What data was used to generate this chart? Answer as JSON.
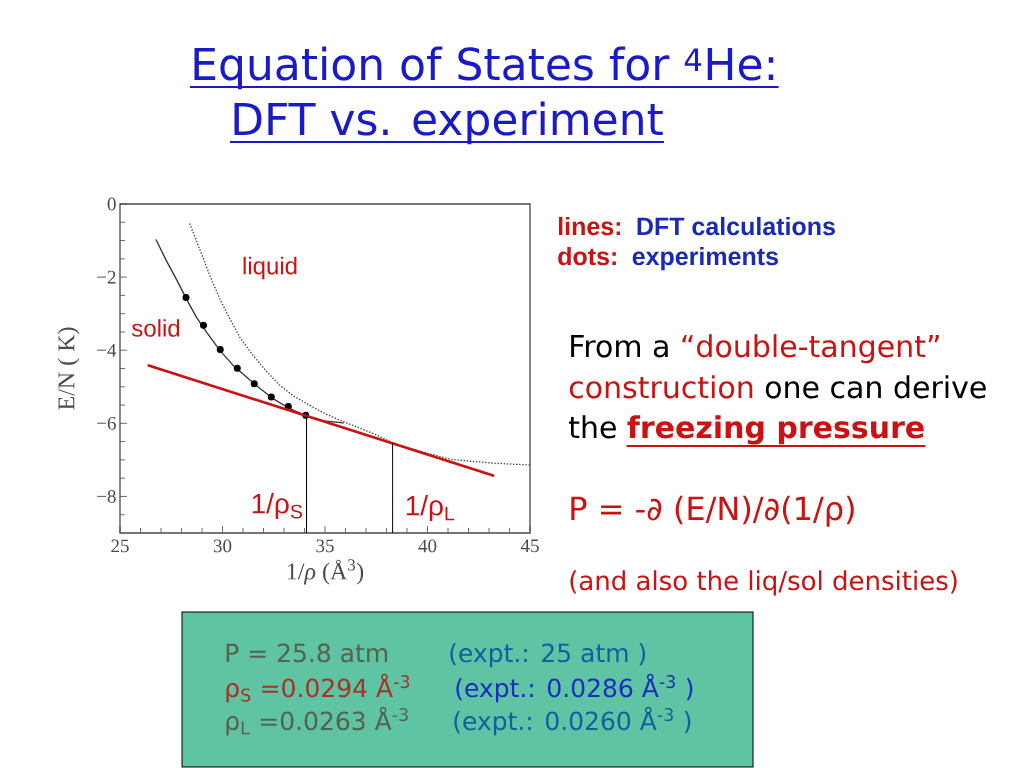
{
  "chart_data": {
    "type": "line",
    "title": "Equation of States for $^{4}$He:",
    "subtitle": "DFT vs. experiment",
    "xlabel": "1/*ρ*   (Å$^{3}$)",
    "ylabel": "E/N ( K)",
    "xlim": [
      25,
      45
    ],
    "ylim": [
      -9,
      0
    ],
    "xticks": [
      25,
      {
        "value": 26,
        "label": null
      },
      {
        "value": 27,
        "label": null
      },
      {
        "value": 28,
        "label": null
      },
      {
        "value": 29,
        "label": null
      },
      30,
      {
        "value": 31,
        "label": null
      },
      {
        "value": 32,
        "label": null
      },
      {
        "value": 33,
        "label": null
      },
      {
        "value": 34,
        "label": null
      },
      35,
      {
        "value": 36,
        "label": null
      },
      {
        "value": 37,
        "label": null
      },
      {
        "value": 38,
        "label": null
      },
      {
        "value": 39,
        "label": null
      },
      40,
      {
        "value": 41,
        "label": null
      },
      {
        "value": 42,
        "label": null
      },
      {
        "value": 43,
        "label": null
      },
      {
        "value": 44,
        "label": null
      },
      45
    ],
    "yticks": [
      0,
      {
        "value": -0.5,
        "label": null
      },
      {
        "value": -1,
        "label": null
      },
      {
        "value": -1.5,
        "label": null
      },
      {
        "value": -2,
        "label": "−2"
      },
      {
        "value": -2.5,
        "label": null
      },
      {
        "value": -3,
        "label": null
      },
      {
        "value": -3.5,
        "label": null
      },
      {
        "value": -4,
        "label": "−4"
      },
      {
        "value": -4.5,
        "label": null
      },
      {
        "value": -5,
        "label": null
      },
      {
        "value": -5.5,
        "label": null
      },
      {
        "value": -6,
        "label": "−6"
      },
      {
        "value": -6.5,
        "label": null
      },
      {
        "value": -7,
        "label": null
      },
      {
        "value": -7.5,
        "label": null
      },
      {
        "value": -8,
        "label": "−8"
      },
      {
        "value": -8.5,
        "label": null
      }
    ],
    "series": [
      {
        "color": "#333333",
        "line_style": "solid",
        "marker": "none",
        "x": [
          26.76,
          27.28,
          27.76,
          28.25,
          28.74,
          29.23,
          29.88,
          30.53,
          31.18,
          31.83,
          32.48,
          33.29,
          34.11,
          34.92,
          35.89
        ],
        "values": [
          -0.98,
          -1.57,
          -2.07,
          -2.61,
          -3.11,
          -3.51,
          -4.01,
          -4.42,
          -4.74,
          -5.05,
          -5.33,
          -5.6,
          -5.81,
          -5.93,
          -5.99
        ]
      },
      {
        "color": "#444444",
        "line_style": "dotted",
        "marker": "none",
        "x": [
          28.41,
          28.9,
          29.39,
          29.88,
          30.37,
          30.85,
          31.5,
          32.15,
          32.8,
          33.46,
          34.11,
          34.92,
          35.74,
          36.55,
          37.36,
          38.3,
          39.0,
          39.8,
          41.2,
          43.2,
          45
        ],
        "values": [
          -0.55,
          -1.25,
          -1.97,
          -2.61,
          -3.15,
          -3.65,
          -4.15,
          -4.58,
          -4.96,
          -5.25,
          -5.46,
          -5.71,
          -5.92,
          -6.1,
          -6.28,
          -6.53,
          -6.66,
          -6.79,
          -6.99,
          -7.09,
          -7.14
        ]
      },
      {
        "type": "scatter",
        "color": "#000000",
        "marker": "circle",
        "x": [
          28.22,
          29.07,
          29.89,
          30.72,
          31.55,
          32.38,
          33.21,
          34.06
        ],
        "values": [
          -2.56,
          -3.32,
          -3.98,
          -4.49,
          -4.92,
          -5.28,
          -5.54,
          -5.78
        ]
      },
      {
        "color": "#cc1111",
        "line_style": "solid",
        "marker": "none",
        "x": [
          26.4,
          43.2
        ],
        "values": [
          -4.42,
          -7.43
        ]
      },
      {
        "color": "#000000",
        "line_style": "solid",
        "marker": "none",
        "x": [
          34.1,
          34.1
        ],
        "values": [
          -9,
          -5.8
        ]
      },
      {
        "color": "#000000",
        "line_style": "solid",
        "marker": "none",
        "x": [
          38.3,
          38.3
        ],
        "values": [
          -9,
          -6.55
        ]
      }
    ],
    "annotations": [
      "solid",
      "liquid",
      "1/ρ$_{S}$",
      "1/ρ$_{L}$",
      "lines:",
      "DFT calculations",
      "dots:",
      "experiments",
      "From a",
      "“double-tangent”",
      "construction",
      "one can derive",
      "the",
      "freezing pressure",
      "P = -∂ (E/N)/∂(1/ρ)",
      "(and also the liq/sol densities)",
      "P  = 25.8 atm",
      "(expt.: 25 atm )",
      "ρ$_{S}$ =0.0294 Å$^{-3}$",
      "(expt.:  0.0286 Å$^{-3}$ )",
      "ρ$_{L}$ =0.0263 Å$^{-3}$",
      "(expt.: 0.0260 Å$^{-3}$ )"
    ]
  }
}
